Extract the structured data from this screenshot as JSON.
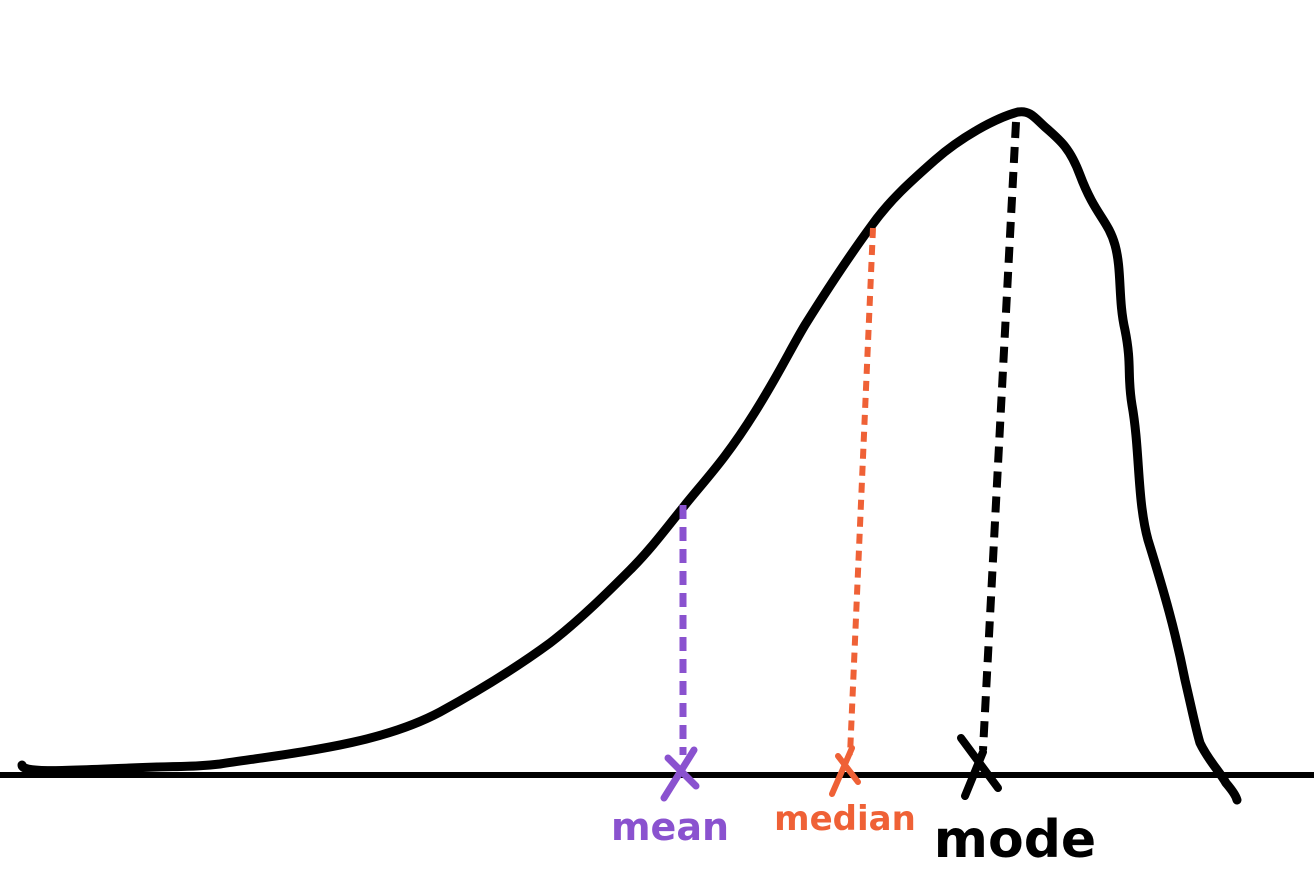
{
  "markers": {
    "mean": {
      "label": "mean",
      "color": "#8a52cf"
    },
    "median": {
      "label": "median",
      "color": "#ef6136"
    },
    "mode": {
      "label": "mode",
      "color": "#000000"
    }
  },
  "colors": {
    "curve": "#000000",
    "axis": "#000000",
    "background": "#ffffff"
  }
}
